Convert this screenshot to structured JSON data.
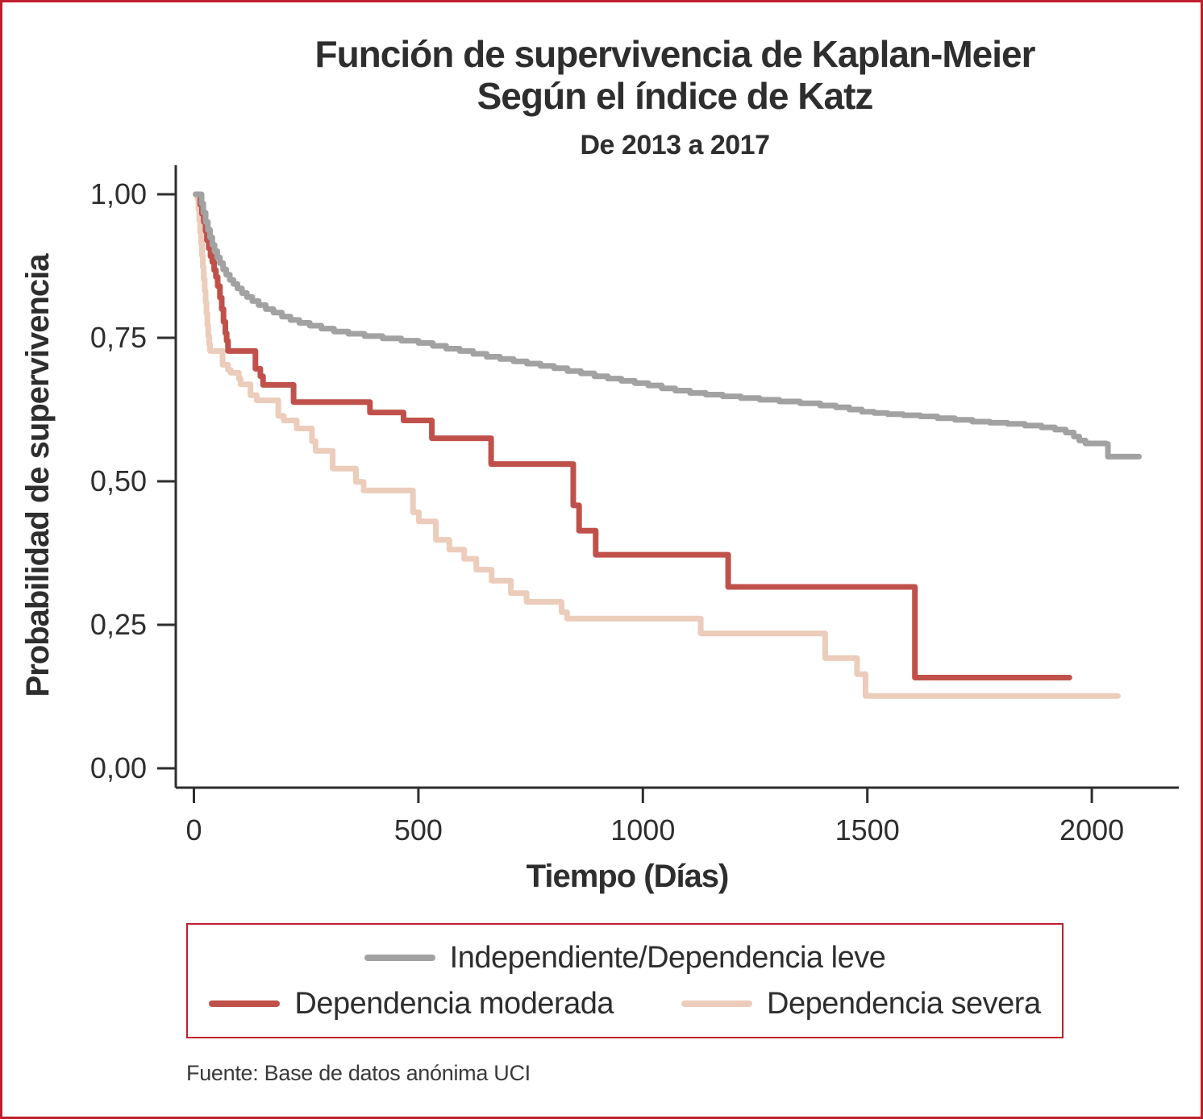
{
  "frame": {
    "border_color": "#be1e2d"
  },
  "chart_data": {
    "type": "line",
    "subtype": "kaplan-meier-step-survival",
    "title": "Función de supervivencia de Kaplan-Meier",
    "title_line2": "Según el índice de Katz",
    "subtitle": "De 2013 a 2017",
    "xlabel": "Tiempo (Días)",
    "ylabel": "Probabilidad de supervivencia",
    "source_note": "Fuente: Base de datos anónima UCI",
    "grid": false,
    "legend_position": "bottom-box",
    "xlim": [
      -40,
      2195
    ],
    "ylim": [
      0,
      1.04
    ],
    "x_ticks": [
      {
        "value": 0,
        "label": "0"
      },
      {
        "value": 500,
        "label": "500"
      },
      {
        "value": 1000,
        "label": "1000"
      },
      {
        "value": 1500,
        "label": "1500"
      },
      {
        "value": 2000,
        "label": "2000"
      }
    ],
    "y_ticks": [
      {
        "value": 0.0,
        "label": "0,00"
      },
      {
        "value": 0.25,
        "label": "0,25"
      },
      {
        "value": 0.5,
        "label": "0,50"
      },
      {
        "value": 0.75,
        "label": "0,75"
      },
      {
        "value": 1.0,
        "label": "1,00"
      }
    ],
    "axis_color": "#2e2e2e",
    "series": [
      {
        "key": "independiente-dependencia-leve",
        "name": "Independiente/Dependencia leve",
        "color": "#a2a2a2",
        "step": true,
        "points": [
          [
            4,
            1.0
          ],
          [
            13,
            1.0
          ],
          [
            17,
            0.984
          ],
          [
            21,
            0.968
          ],
          [
            26,
            0.952
          ],
          [
            31,
            0.938
          ],
          [
            36,
            0.925
          ],
          [
            41,
            0.912
          ],
          [
            46,
            0.901
          ],
          [
            52,
            0.89
          ],
          [
            58,
            0.88
          ],
          [
            65,
            0.869
          ],
          [
            72,
            0.86
          ],
          [
            80,
            0.851
          ],
          [
            88,
            0.844
          ],
          [
            97,
            0.836
          ],
          [
            107,
            0.828
          ],
          [
            118,
            0.821
          ],
          [
            130,
            0.814
          ],
          [
            144,
            0.807
          ],
          [
            160,
            0.8
          ],
          [
            177,
            0.794
          ],
          [
            196,
            0.787
          ],
          [
            215,
            0.781
          ],
          [
            235,
            0.776
          ],
          [
            258,
            0.771
          ],
          [
            284,
            0.766
          ],
          [
            312,
            0.761
          ],
          [
            344,
            0.757
          ],
          [
            380,
            0.753
          ],
          [
            420,
            0.749
          ],
          [
            462,
            0.745
          ],
          [
            500,
            0.741
          ],
          [
            532,
            0.736
          ],
          [
            562,
            0.731
          ],
          [
            592,
            0.727
          ],
          [
            622,
            0.722
          ],
          [
            652,
            0.717
          ],
          [
            682,
            0.713
          ],
          [
            712,
            0.709
          ],
          [
            742,
            0.705
          ],
          [
            772,
            0.701
          ],
          [
            802,
            0.697
          ],
          [
            832,
            0.692
          ],
          [
            862,
            0.688
          ],
          [
            892,
            0.683
          ],
          [
            922,
            0.679
          ],
          [
            952,
            0.675
          ],
          [
            982,
            0.671
          ],
          [
            1012,
            0.667
          ],
          [
            1042,
            0.662
          ],
          [
            1072,
            0.658
          ],
          [
            1105,
            0.654
          ],
          [
            1140,
            0.651
          ],
          [
            1178,
            0.648
          ],
          [
            1218,
            0.645
          ],
          [
            1260,
            0.642
          ],
          [
            1304,
            0.639
          ],
          [
            1350,
            0.636
          ],
          [
            1395,
            0.632
          ],
          [
            1430,
            0.629
          ],
          [
            1460,
            0.625
          ],
          [
            1488,
            0.621
          ],
          [
            1515,
            0.619
          ],
          [
            1545,
            0.617
          ],
          [
            1580,
            0.615
          ],
          [
            1618,
            0.613
          ],
          [
            1656,
            0.61
          ],
          [
            1695,
            0.607
          ],
          [
            1734,
            0.604
          ],
          [
            1773,
            0.602
          ],
          [
            1812,
            0.6
          ],
          [
            1851,
            0.597
          ],
          [
            1888,
            0.594
          ],
          [
            1918,
            0.59
          ],
          [
            1942,
            0.585
          ],
          [
            1960,
            0.578
          ],
          [
            1972,
            0.571
          ],
          [
            1986,
            0.566
          ],
          [
            2032,
            0.565
          ],
          [
            2036,
            0.543
          ],
          [
            2105,
            0.543
          ]
        ]
      },
      {
        "key": "dependencia-moderada",
        "name": "Dependencia moderada",
        "color": "#c0514a",
        "step": true,
        "points": [
          [
            4,
            1.0
          ],
          [
            11,
            1.0
          ],
          [
            14,
            0.982
          ],
          [
            18,
            0.966
          ],
          [
            22,
            0.952
          ],
          [
            26,
            0.936
          ],
          [
            29,
            0.92
          ],
          [
            33,
            0.906
          ],
          [
            37,
            0.892
          ],
          [
            41,
            0.882
          ],
          [
            45,
            0.868
          ],
          [
            49,
            0.856
          ],
          [
            53,
            0.84
          ],
          [
            58,
            0.82
          ],
          [
            62,
            0.8
          ],
          [
            66,
            0.778
          ],
          [
            70,
            0.758
          ],
          [
            73,
            0.745
          ],
          [
            76,
            0.727
          ],
          [
            137,
            0.696
          ],
          [
            148,
            0.683
          ],
          [
            154,
            0.668
          ],
          [
            222,
            0.638
          ],
          [
            392,
            0.62
          ],
          [
            467,
            0.606
          ],
          [
            530,
            0.575
          ],
          [
            662,
            0.53
          ],
          [
            845,
            0.458
          ],
          [
            858,
            0.414
          ],
          [
            895,
            0.372
          ],
          [
            1190,
            0.316
          ],
          [
            1606,
            0.158
          ],
          [
            1950,
            0.158
          ]
        ]
      },
      {
        "key": "dependencia-severa",
        "name": "Dependencia severa",
        "color": "#ecccba",
        "step": true,
        "points": [
          [
            4,
            1.0
          ],
          [
            8,
            0.992
          ],
          [
            10,
            0.973
          ],
          [
            12,
            0.954
          ],
          [
            14,
            0.934
          ],
          [
            16,
            0.914
          ],
          [
            18,
            0.894
          ],
          [
            20,
            0.873
          ],
          [
            22,
            0.852
          ],
          [
            24,
            0.832
          ],
          [
            26,
            0.812
          ],
          [
            28,
            0.792
          ],
          [
            30,
            0.772
          ],
          [
            32,
            0.753
          ],
          [
            34,
            0.739
          ],
          [
            36,
            0.727
          ],
          [
            64,
            0.703
          ],
          [
            76,
            0.694
          ],
          [
            82,
            0.689
          ],
          [
            100,
            0.679
          ],
          [
            104,
            0.669
          ],
          [
            126,
            0.65
          ],
          [
            140,
            0.641
          ],
          [
            188,
            0.614
          ],
          [
            200,
            0.606
          ],
          [
            229,
            0.592
          ],
          [
            263,
            0.57
          ],
          [
            271,
            0.553
          ],
          [
            309,
            0.522
          ],
          [
            361,
            0.499
          ],
          [
            378,
            0.484
          ],
          [
            488,
            0.446
          ],
          [
            501,
            0.43
          ],
          [
            539,
            0.398
          ],
          [
            569,
            0.381
          ],
          [
            602,
            0.365
          ],
          [
            629,
            0.346
          ],
          [
            663,
            0.327
          ],
          [
            706,
            0.305
          ],
          [
            741,
            0.29
          ],
          [
            819,
            0.272
          ],
          [
            831,
            0.261
          ],
          [
            1129,
            0.235
          ],
          [
            1406,
            0.192
          ],
          [
            1477,
            0.164
          ],
          [
            1496,
            0.126
          ],
          [
            2058,
            0.126
          ]
        ]
      }
    ]
  }
}
